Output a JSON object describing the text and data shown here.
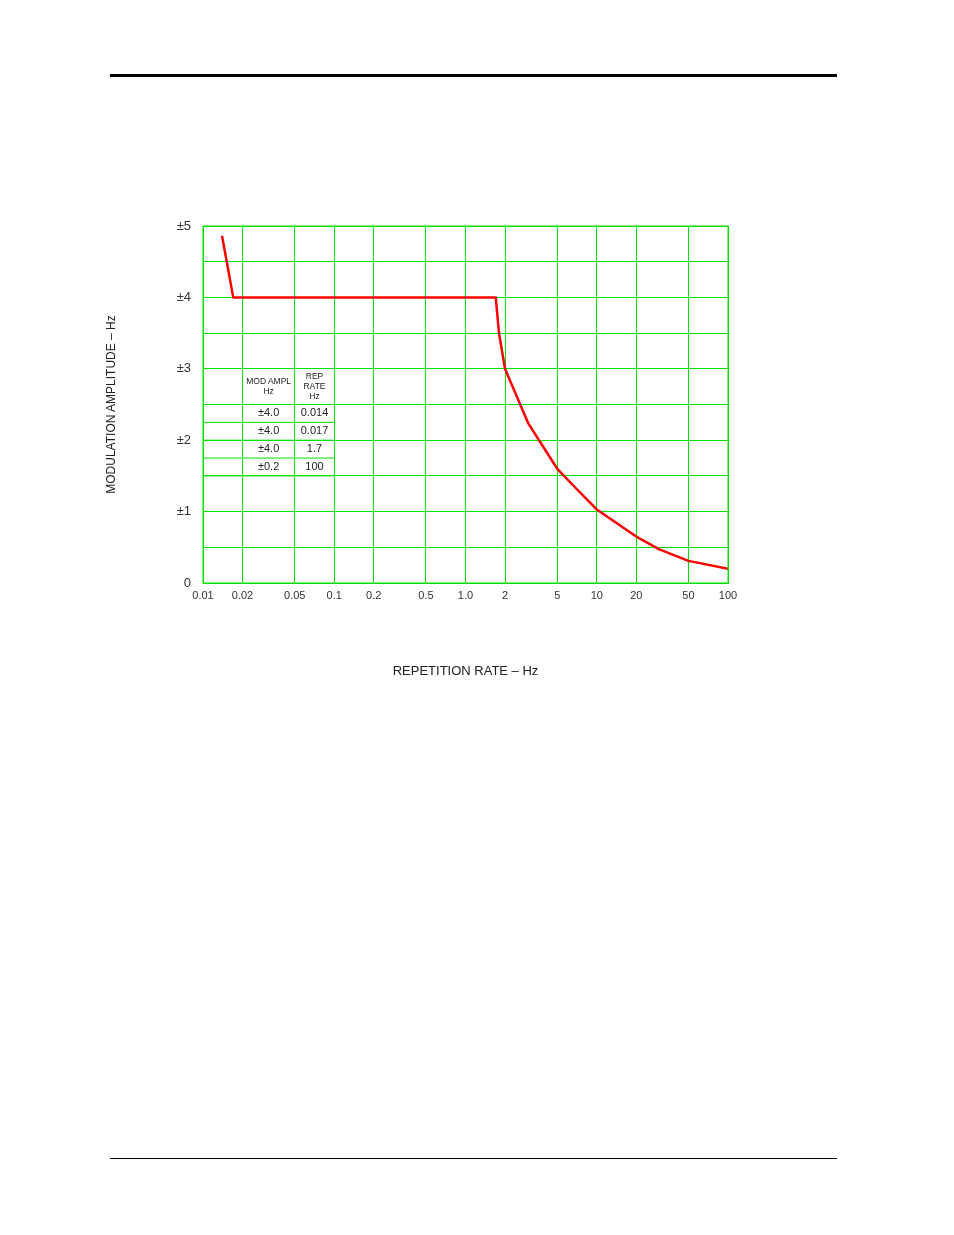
{
  "chart_data": {
    "type": "line",
    "xlabel": "REPETITION RATE – Hz",
    "ylabel": "MODULATION AMPLITUDE – Hz",
    "log": "x",
    "grid": true,
    "legend": false,
    "marker": "none",
    "line_style": "solid",
    "xlim": [
      0.01,
      100
    ],
    "ylim": [
      0,
      5
    ],
    "xticks": [
      0.01,
      0.02,
      0.05,
      0.1,
      0.2,
      0.5,
      {
        "value": 1,
        "label": "1.0"
      },
      2,
      5,
      10,
      20,
      50,
      100
    ],
    "yticks": [
      0,
      {
        "value": 0.5,
        "label": null
      },
      {
        "value": 1,
        "label": "±1"
      },
      {
        "value": 1.5,
        "label": null
      },
      {
        "value": 2,
        "label": "±2"
      },
      {
        "value": 2.5,
        "label": null
      },
      {
        "value": 3,
        "label": "±3"
      },
      {
        "value": 3.5,
        "label": null
      },
      {
        "value": 4,
        "label": "±4"
      },
      {
        "value": 4.5,
        "label": null
      },
      {
        "value": 5,
        "label": "±5"
      }
    ],
    "series": [
      {
        "color": "#ff0000",
        "x": [
          0.014,
          0.017,
          1.7,
          1.8,
          2,
          3,
          5,
          7,
          10,
          20,
          30,
          50,
          100
        ],
        "values": [
          4.85,
          4,
          4,
          3.5,
          3,
          2.24,
          1.6,
          1.32,
          1.03,
          0.65,
          0.47,
          0.31,
          0.2
        ]
      }
    ],
    "annotations": [
      "MOD AMPL\nHz",
      "REP\nRATE\nHz",
      "±4.0",
      "0.014",
      "±4.0",
      "0.017",
      "±4.0",
      "1.7",
      "±0.2",
      "100"
    ]
  }
}
